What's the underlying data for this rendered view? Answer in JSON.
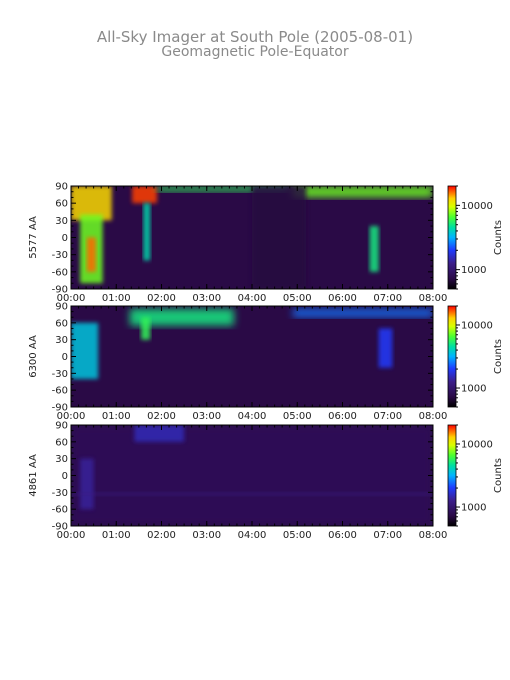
{
  "figure": {
    "title": "All-Sky Imager at South Pole (2005-08-01)",
    "subtitle": "Geomagnetic Pole-Equator"
  },
  "colors": {
    "background": "#2a0a46",
    "weak": "#3a1a6a",
    "colormap": [
      "#000000",
      "#2a0a46",
      "#3c1e8a",
      "#1f3cff",
      "#00b4ff",
      "#00e0a0",
      "#4cff30",
      "#d8ff00",
      "#ffd000",
      "#ff6a00",
      "#ff0000"
    ]
  },
  "chart_data": [
    {
      "type": "heatmap",
      "ylabel": "5577 AA",
      "x_ticks": [
        "00:00",
        "01:00",
        "02:00",
        "03:00",
        "04:00",
        "05:00",
        "06:00",
        "07:00",
        "08:00"
      ],
      "y_ticks": [
        90,
        60,
        30,
        0,
        -30,
        -60,
        -90
      ],
      "xlim": [
        "00:00",
        "08:00"
      ],
      "ylim": [
        -90,
        90
      ],
      "colorbar": {
        "label": "Counts",
        "ticks": [
          10000,
          1000
        ],
        "tick_labels": [
          "10000",
          "1000"
        ],
        "range": [
          500,
          20000
        ],
        "scale": "log"
      },
      "features": [
        {
          "t": [
            0.0,
            0.9
          ],
          "lat": [
            30,
            90
          ],
          "counts": 9000
        },
        {
          "t": [
            0.2,
            0.7
          ],
          "lat": [
            -80,
            40
          ],
          "counts": 5000
        },
        {
          "t": [
            0.35,
            0.55
          ],
          "lat": [
            -60,
            0
          ],
          "counts": 14000
        },
        {
          "t": [
            1.35,
            1.9
          ],
          "lat": [
            60,
            90
          ],
          "counts": 16000
        },
        {
          "t": [
            1.6,
            1.75
          ],
          "lat": [
            -40,
            60
          ],
          "counts": 3000
        },
        {
          "t": [
            1.9,
            4.8
          ],
          "lat": [
            80,
            90
          ],
          "counts": 4000
        },
        {
          "t": [
            4.9,
            8.0
          ],
          "lat": [
            70,
            90
          ],
          "counts": 5000
        },
        {
          "t": [
            6.6,
            6.8
          ],
          "lat": [
            -60,
            20
          ],
          "counts": 3500
        },
        {
          "t": [
            4.0,
            5.2
          ],
          "lat": [
            -90,
            90
          ],
          "counts": 700
        }
      ]
    },
    {
      "type": "heatmap",
      "ylabel": "6300 AA",
      "x_ticks": [
        "00:00",
        "01:00",
        "02:00",
        "03:00",
        "04:00",
        "05:00",
        "06:00",
        "07:00",
        "08:00"
      ],
      "y_ticks": [
        90,
        60,
        30,
        0,
        -30,
        -60,
        -90
      ],
      "xlim": [
        "00:00",
        "08:00"
      ],
      "ylim": [
        -90,
        90
      ],
      "colorbar": {
        "label": "Counts",
        "ticks": [
          10000,
          1000
        ],
        "tick_labels": [
          "10000",
          "1000"
        ],
        "range": [
          500,
          20000
        ],
        "scale": "log"
      },
      "features": [
        {
          "t": [
            0.0,
            0.6
          ],
          "lat": [
            -40,
            60
          ],
          "counts": 2500
        },
        {
          "t": [
            1.3,
            3.6
          ],
          "lat": [
            55,
            85
          ],
          "counts": 3500
        },
        {
          "t": [
            1.55,
            1.75
          ],
          "lat": [
            30,
            70
          ],
          "counts": 4000
        },
        {
          "t": [
            4.9,
            8.0
          ],
          "lat": [
            70,
            85
          ],
          "counts": 1800
        },
        {
          "t": [
            6.8,
            7.1
          ],
          "lat": [
            -20,
            50
          ],
          "counts": 1500
        }
      ]
    },
    {
      "type": "heatmap",
      "ylabel": "4861 AA",
      "x_ticks": [
        "00:00",
        "01:00",
        "02:00",
        "03:00",
        "04:00",
        "05:00",
        "06:00",
        "07:00",
        "08:00"
      ],
      "y_ticks": [
        90,
        60,
        30,
        0,
        -30,
        -60,
        -90
      ],
      "xlim": [
        "00:00",
        "08:00"
      ],
      "ylim": [
        -90,
        90
      ],
      "colorbar": {
        "label": "Counts",
        "ticks": [
          10000,
          1000
        ],
        "tick_labels": [
          "10000",
          "1000"
        ],
        "range": [
          500,
          20000
        ],
        "scale": "log"
      },
      "features": [
        {
          "t": [
            0.0,
            8.0
          ],
          "lat": [
            -90,
            90
          ],
          "counts": 800
        },
        {
          "t": [
            0.2,
            0.5
          ],
          "lat": [
            -60,
            30
          ],
          "counts": 1100
        },
        {
          "t": [
            0.0,
            8.0
          ],
          "lat": [
            -36,
            -30
          ],
          "counts": 1000
        },
        {
          "t": [
            1.4,
            2.5
          ],
          "lat": [
            60,
            90
          ],
          "counts": 1200
        }
      ]
    }
  ]
}
